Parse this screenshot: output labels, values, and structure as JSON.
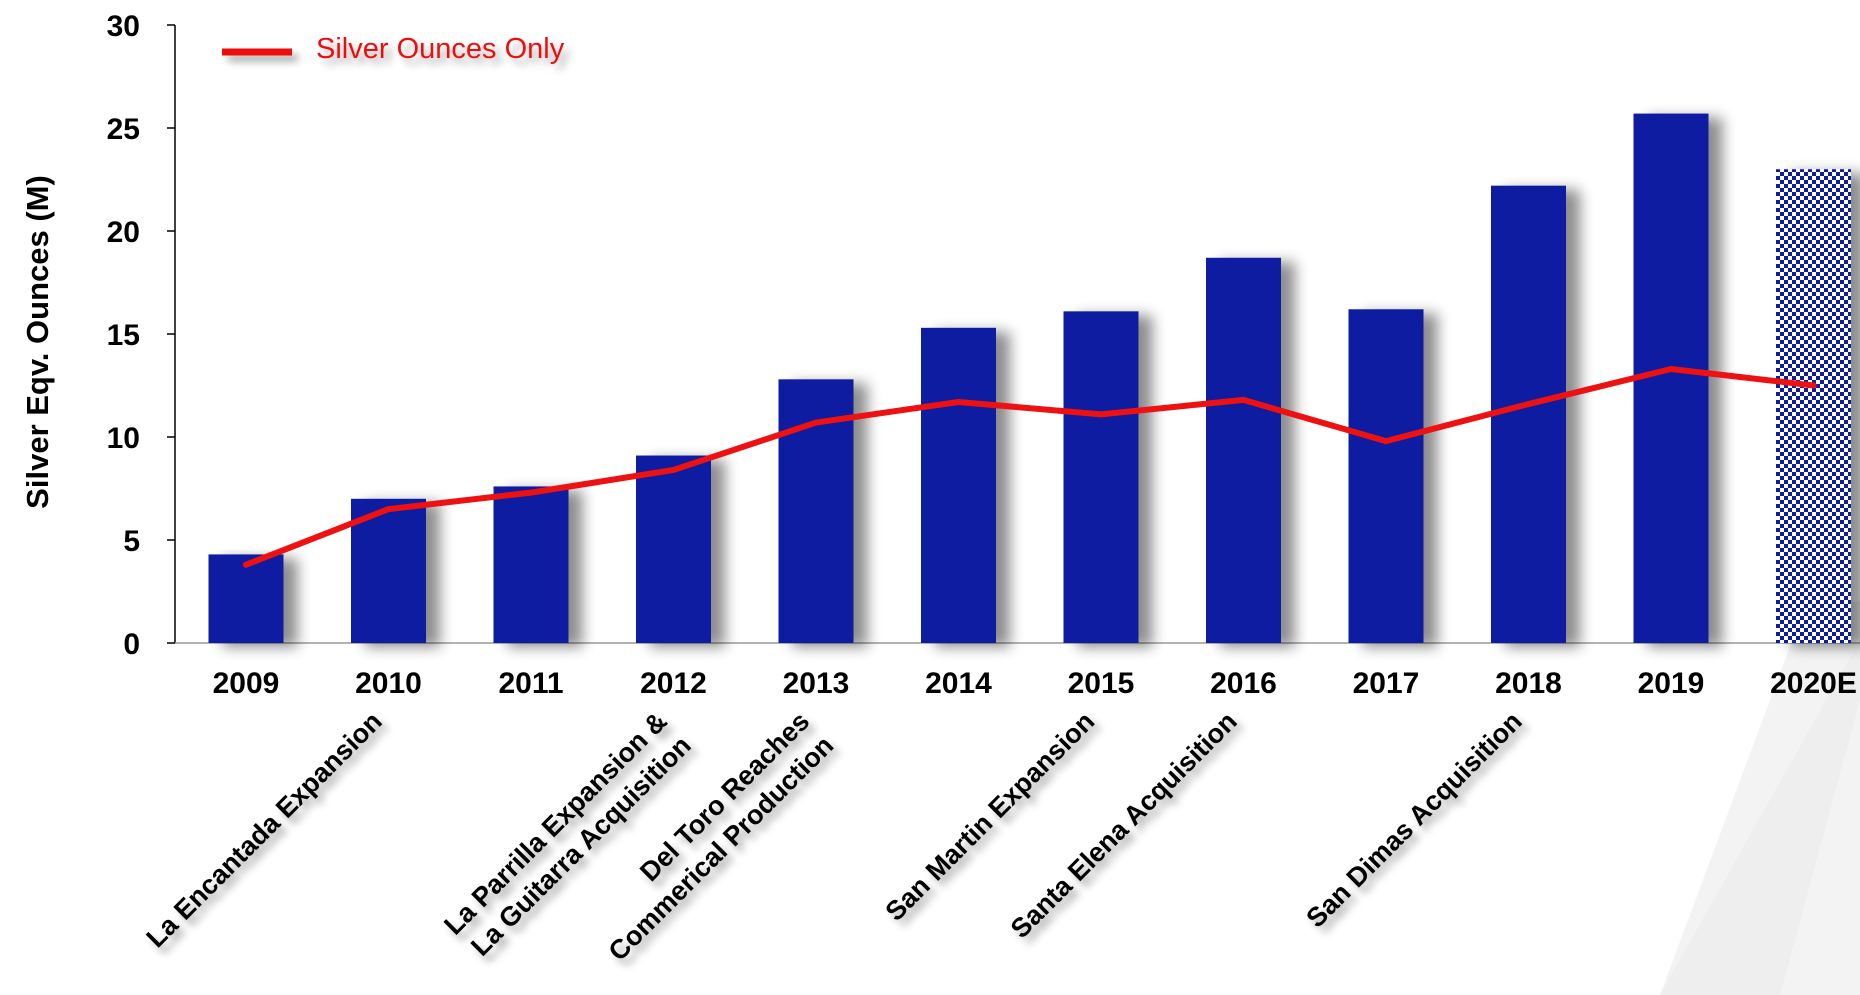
{
  "chart_data": {
    "type": "bar",
    "categories": [
      "2009",
      "2010",
      "2011",
      "2012",
      "2013",
      "2014",
      "2015",
      "2016",
      "2017",
      "2018",
      "2019",
      "2020E"
    ],
    "title": "",
    "xlabel": "",
    "ylabel": "Silver  Eqv. Ounces (M)",
    "ylim": [
      0,
      30
    ],
    "yticks": [
      0,
      5,
      10,
      15,
      20,
      25,
      30
    ],
    "grid": false,
    "series": [
      {
        "name": "",
        "type": "bar",
        "values": [
          4.3,
          7.0,
          7.6,
          9.1,
          12.8,
          15.3,
          16.1,
          18.7,
          16.2,
          22.2,
          25.7,
          23.0
        ],
        "color": "#0a1aa0",
        "estimate_pattern_index": 11
      },
      {
        "name": "Silver Ounces Only",
        "type": "line",
        "values": [
          3.8,
          6.5,
          7.3,
          8.4,
          10.7,
          11.7,
          11.1,
          11.8,
          9.8,
          11.6,
          13.3,
          12.5
        ],
        "color": "#ee1111"
      }
    ],
    "legend": {
      "position": "top-left",
      "label": "Silver Ounces Only"
    },
    "annotations": [
      {
        "at": "2010",
        "lines": [
          "La Encantada Expansion"
        ]
      },
      {
        "at": "2012",
        "lines": [
          "La Parrilla Expansion &",
          "La Guitarra Acquisition"
        ]
      },
      {
        "at": "2013",
        "lines": [
          "Del Toro Reaches",
          "Commerical Production"
        ]
      },
      {
        "at": "2015",
        "lines": [
          "San Martin Expansion"
        ]
      },
      {
        "at": "2016",
        "lines": [
          "Santa Elena Acquisition"
        ]
      },
      {
        "at": "2018",
        "lines": [
          "San Dimas Acquisition"
        ]
      }
    ]
  }
}
